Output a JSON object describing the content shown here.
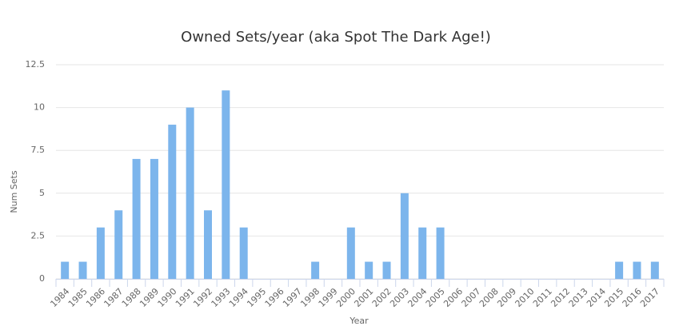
{
  "chart_data": {
    "type": "bar",
    "title": "Owned Sets/year (aka Spot The Dark Age!)",
    "x_label": "Year",
    "y_label": "Num Sets",
    "categories": [
      "1984",
      "1985",
      "1986",
      "1987",
      "1988",
      "1989",
      "1990",
      "1991",
      "1992",
      "1993",
      "1994",
      "1995",
      "1996",
      "1997",
      "1998",
      "1999",
      "2000",
      "2001",
      "2002",
      "2003",
      "2004",
      "2005",
      "2006",
      "2007",
      "2008",
      "2009",
      "2010",
      "2011",
      "2012",
      "2013",
      "2014",
      "2015",
      "2016",
      "2017"
    ],
    "values": [
      1,
      1,
      3,
      4,
      7,
      7,
      9,
      10,
      4,
      11,
      3,
      0,
      0,
      0,
      1,
      0,
      3,
      1,
      1,
      5,
      3,
      3,
      0,
      0,
      0,
      0,
      0,
      0,
      0,
      0,
      0,
      1,
      1,
      1
    ],
    "color": "#7cb5ec",
    "ylim": [
      0,
      12.5
    ],
    "yticks": [
      0,
      2.5,
      5,
      7.5,
      10,
      12.5
    ],
    "grid": true
  }
}
